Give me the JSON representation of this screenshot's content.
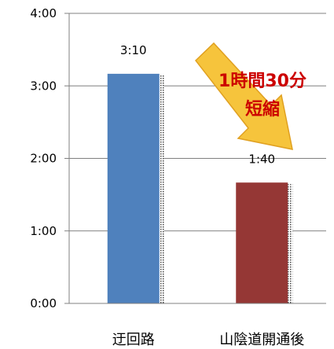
{
  "chart_data": {
    "type": "bar",
    "categories": [
      "迂回路",
      "山陰道開通後"
    ],
    "values": [
      190,
      100
    ],
    "value_unit": "minutes",
    "data_labels": [
      "3:10",
      "1:40"
    ],
    "ylim": [
      0,
      240
    ],
    "yticks": [
      {
        "value": 0,
        "label": "0:00"
      },
      {
        "value": 60,
        "label": "1:00"
      },
      {
        "value": 120,
        "label": "2:00"
      },
      {
        "value": 180,
        "label": "3:00"
      },
      {
        "value": 240,
        "label": "4:00"
      }
    ],
    "bar_colors": [
      "#4f81bd",
      "#953735"
    ],
    "grid": true,
    "annotation": {
      "line1": "1時間30分",
      "line2": "短縮"
    }
  },
  "colors": {
    "arrow_fill": "#f6c43c",
    "arrow_stroke": "#e0a020",
    "callout_text": "#cc0000",
    "axis": "#808080",
    "grid": "#808080"
  }
}
